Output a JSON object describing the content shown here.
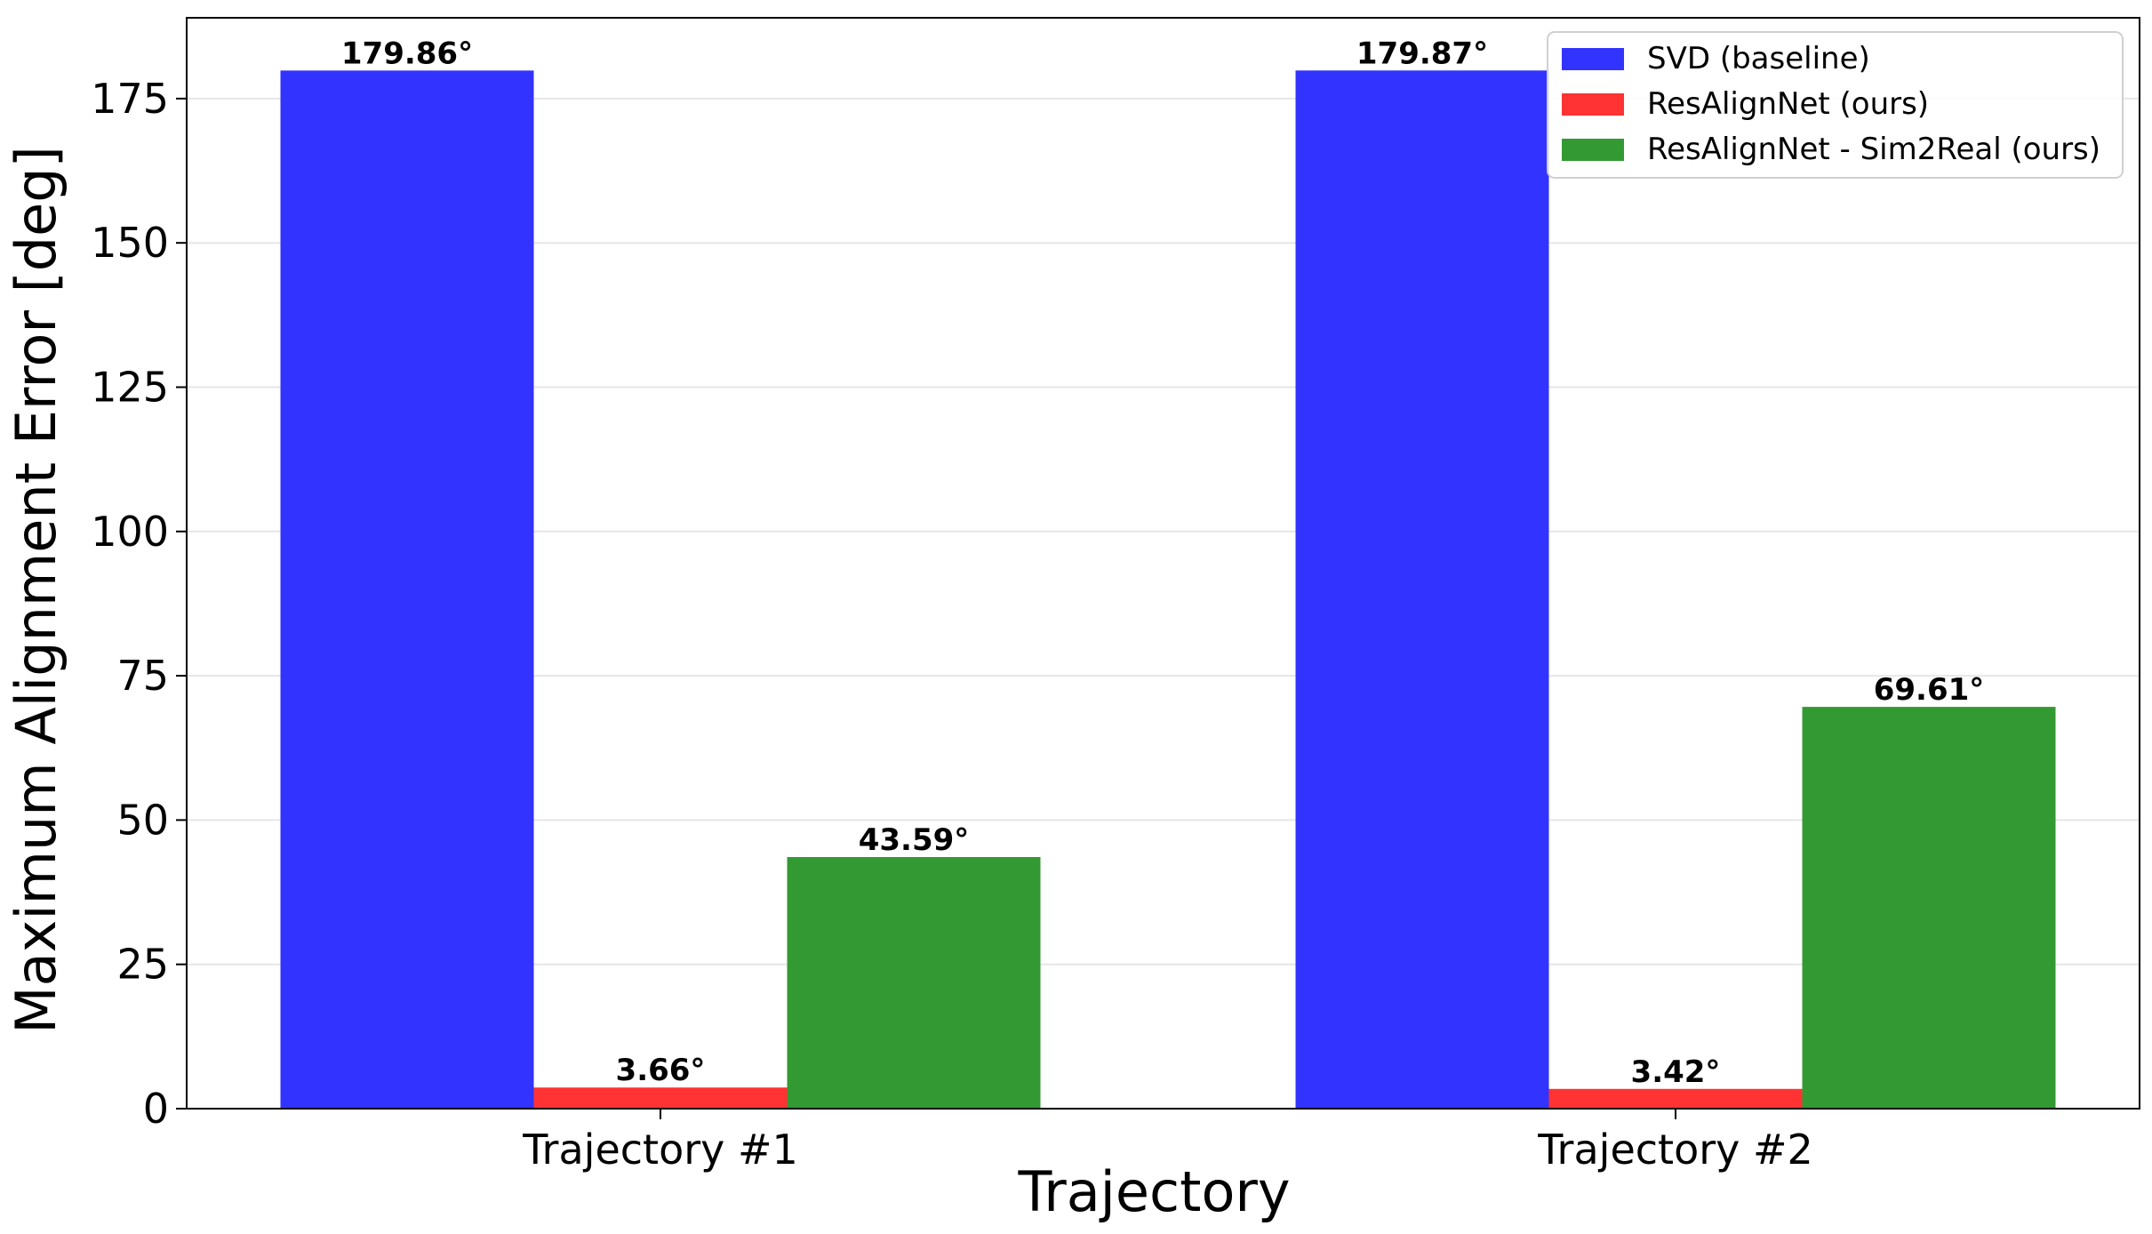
{
  "chart_data": {
    "type": "bar",
    "title": "",
    "xlabel": "Trajectory",
    "ylabel": "Maximum Alignment Error [deg]",
    "categories": [
      "Trajectory #1",
      "Trajectory #2"
    ],
    "ylim": [
      0,
      189
    ],
    "yticks": [
      0,
      25,
      50,
      75,
      100,
      125,
      150,
      175
    ],
    "grid": "horizontal",
    "legend_position": "top-right",
    "series": [
      {
        "name": "SVD (baseline)",
        "color": "#3333ff",
        "values": [
          179.86,
          179.87
        ],
        "labels": [
          "179.86°",
          "179.87°"
        ]
      },
      {
        "name": "ResAlignNet (ours)",
        "color": "#ff3333",
        "values": [
          3.66,
          3.42
        ],
        "labels": [
          "3.66°",
          "3.42°"
        ]
      },
      {
        "name": "ResAlignNet - Sim2Real (ours)",
        "color": "#339933",
        "values": [
          43.59,
          69.61
        ],
        "labels": [
          "43.59°",
          "69.61°"
        ]
      }
    ]
  }
}
